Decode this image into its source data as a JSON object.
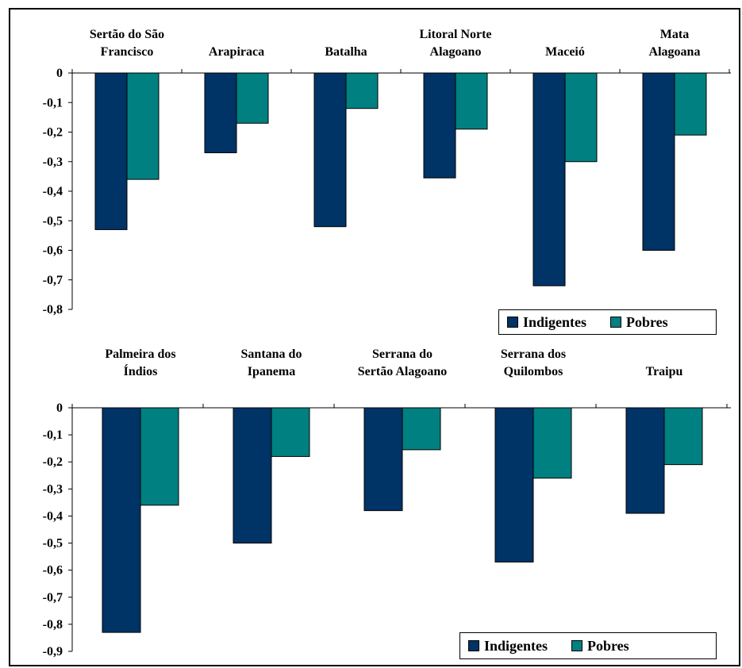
{
  "colors": {
    "indigentes": "#003366",
    "pobres": "#008080"
  },
  "chart_data": [
    {
      "type": "bar",
      "categories": [
        [
          "Sertão do São",
          "Francisco"
        ],
        [
          "Arapiraca"
        ],
        [
          "Batalha"
        ],
        [
          "Litoral Norte",
          "Alagoano"
        ],
        [
          "Maceió"
        ],
        [
          "Mata",
          "Alagoana"
        ]
      ],
      "series": [
        {
          "name": "Indigentes",
          "values": [
            -0.53,
            -0.27,
            -0.52,
            -0.355,
            -0.72,
            -0.6
          ]
        },
        {
          "name": "Pobres",
          "values": [
            -0.36,
            -0.17,
            -0.12,
            -0.19,
            -0.3,
            -0.21
          ]
        }
      ],
      "ylim": [
        -0.8,
        0
      ],
      "yticks": [
        "0",
        "-0,1",
        "-0,2",
        "-0,3",
        "-0,4",
        "-0,5",
        "-0,6",
        "-0,7",
        "-0,8"
      ],
      "legend": {
        "placement": "bottom-right",
        "items": [
          "Indigentes",
          "Pobres"
        ]
      }
    },
    {
      "type": "bar",
      "categories": [
        [
          "Palmeira dos",
          "Índios"
        ],
        [
          "Santana do",
          "Ipanema"
        ],
        [
          "Serrana do",
          "Sertão Alagoano"
        ],
        [
          "Serrana dos",
          "Quilombos"
        ],
        [
          "Traipu"
        ]
      ],
      "series": [
        {
          "name": "Indigentes",
          "values": [
            -0.83,
            -0.5,
            -0.38,
            -0.57,
            -0.39
          ]
        },
        {
          "name": "Pobres",
          "values": [
            -0.36,
            -0.18,
            -0.155,
            -0.26,
            -0.21
          ]
        }
      ],
      "ylim": [
        -0.9,
        0
      ],
      "yticks": [
        "0",
        "-0,1",
        "-0,2",
        "-0,3",
        "-0,4",
        "-0,5",
        "-0,6",
        "-0,7",
        "-0,8",
        "-0,9"
      ],
      "legend": {
        "placement": "bottom-right",
        "items": [
          "Indigentes",
          "Pobres"
        ]
      }
    }
  ]
}
